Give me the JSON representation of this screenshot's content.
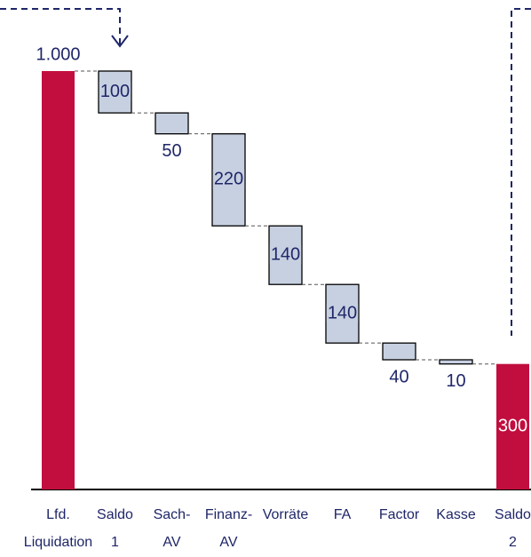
{
  "chart_data": {
    "type": "waterfall",
    "categories": [
      "Lfd. Liquidation",
      "Saldo 1",
      "Sach-AV",
      "Finanz-AV",
      "Vorräte",
      "FA",
      "Factor",
      "Kasse",
      "Saldo 2"
    ],
    "measure": [
      "total",
      "decrease",
      "decrease",
      "decrease",
      "decrease",
      "decrease",
      "decrease",
      "decrease",
      "total"
    ],
    "values": [
      1000,
      100,
      50,
      220,
      140,
      140,
      40,
      10,
      300
    ],
    "value_labels": [
      "1.000",
      "100",
      "50",
      "220",
      "140",
      "140",
      "40",
      "10",
      "300"
    ],
    "total_color": "#c20e3f",
    "delta_color": "#c6d0e1",
    "ylim": [
      0,
      1000
    ]
  }
}
